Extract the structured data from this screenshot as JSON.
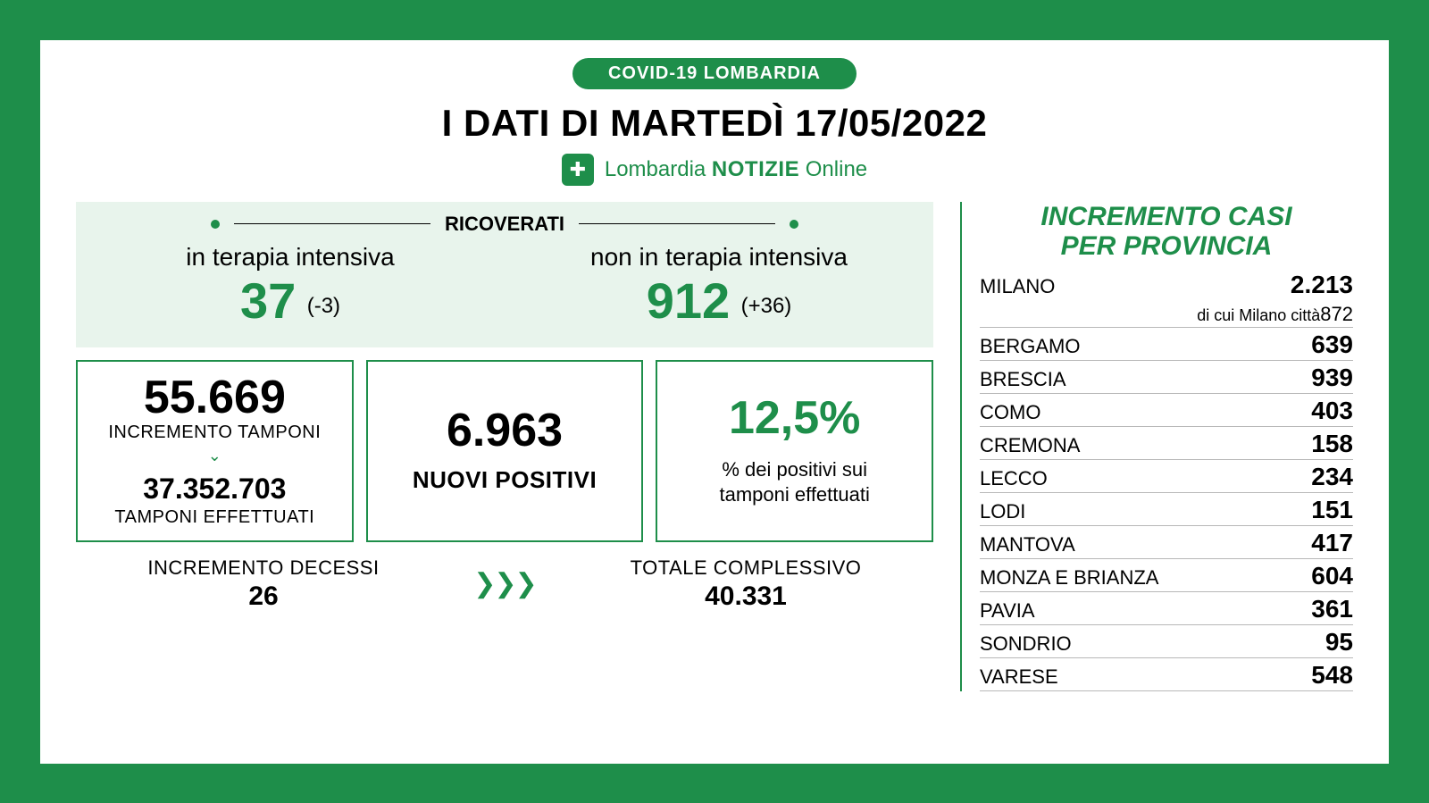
{
  "colors": {
    "brand_green": "#1e8e4a",
    "panel_green": "#e8f4ec",
    "white": "#ffffff",
    "text": "#000000",
    "rule": "#b8b8b8"
  },
  "header": {
    "pill": "COVID-19 LOMBARDIA",
    "title": "I DATI DI MARTEDÌ 17/05/2022",
    "logo_text_1": "Lombardia",
    "logo_text_2": "NOTIZIE",
    "logo_text_3": "Online"
  },
  "hospitalized": {
    "section_label": "RICOVERATI",
    "intensive": {
      "label": "in terapia intensiva",
      "value": "37",
      "delta": "(-3)"
    },
    "non_intensive": {
      "label": "non in terapia intensiva",
      "value": "912",
      "delta": "(+36)"
    }
  },
  "stats": {
    "swabs": {
      "increment_value": "55.669",
      "increment_label": "INCREMENTO TAMPONI",
      "total_value": "37.352.703",
      "total_label": "TAMPONI EFFETTUATI"
    },
    "positives": {
      "value": "6.963",
      "label": "NUOVI POSITIVI"
    },
    "rate": {
      "value": "12,5%",
      "desc_line1": "% dei positivi sui",
      "desc_line2": "tamponi effettuati"
    }
  },
  "bottom": {
    "deaths": {
      "label": "INCREMENTO DECESSI",
      "value": "26"
    },
    "total": {
      "label": "TOTALE COMPLESSIVO",
      "value": "40.331"
    }
  },
  "provinces": {
    "title_line1": "INCREMENTO CASI",
    "title_line2": "PER PROVINCIA",
    "rows": [
      {
        "name": "MILANO",
        "value": "2.213",
        "sub_name": "di cui Milano città",
        "sub_value": "872"
      },
      {
        "name": "BERGAMO",
        "value": "639"
      },
      {
        "name": "BRESCIA",
        "value": "939"
      },
      {
        "name": "COMO",
        "value": "403"
      },
      {
        "name": "CREMONA",
        "value": "158"
      },
      {
        "name": "LECCO",
        "value": "234"
      },
      {
        "name": "LODI",
        "value": "151"
      },
      {
        "name": "MANTOVA",
        "value": "417"
      },
      {
        "name": "MONZA E BRIANZA",
        "value": "604"
      },
      {
        "name": "PAVIA",
        "value": "361"
      },
      {
        "name": "SONDRIO",
        "value": "95"
      },
      {
        "name": "VARESE",
        "value": "548"
      }
    ]
  }
}
